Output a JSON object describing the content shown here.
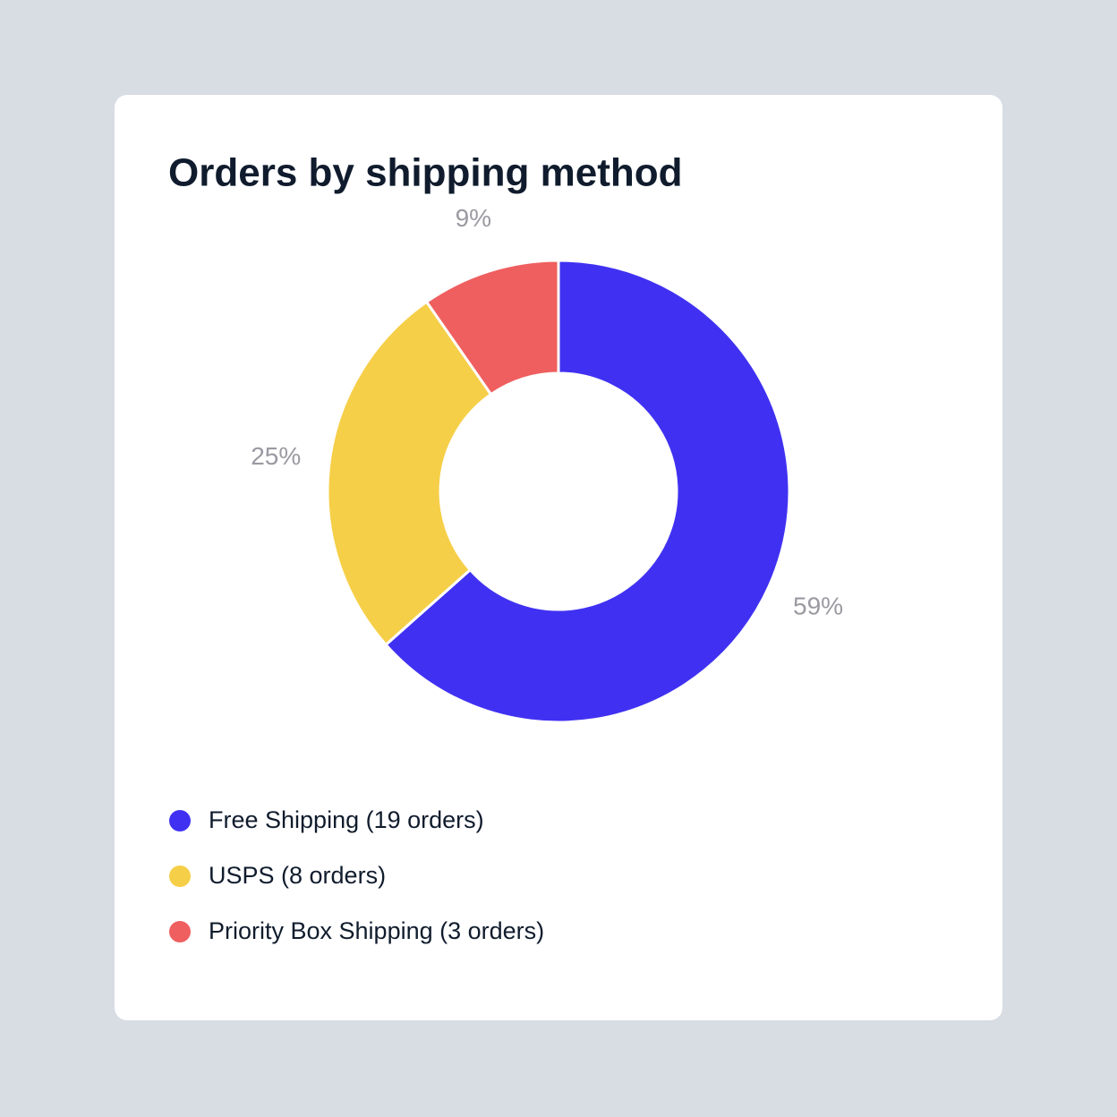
{
  "chart_data": {
    "type": "donut",
    "title": "Orders by shipping method",
    "categories": [
      "Free Shipping (19 orders)",
      "USPS (8 orders)",
      "Priority Box Shipping (3 orders)"
    ],
    "values": [
      59,
      25,
      9
    ],
    "value_labels": [
      "59%",
      "25%",
      "9%"
    ],
    "colors": [
      "#4031f2",
      "#f6cf48",
      "#ef5f5f"
    ],
    "legend": "bottom"
  }
}
